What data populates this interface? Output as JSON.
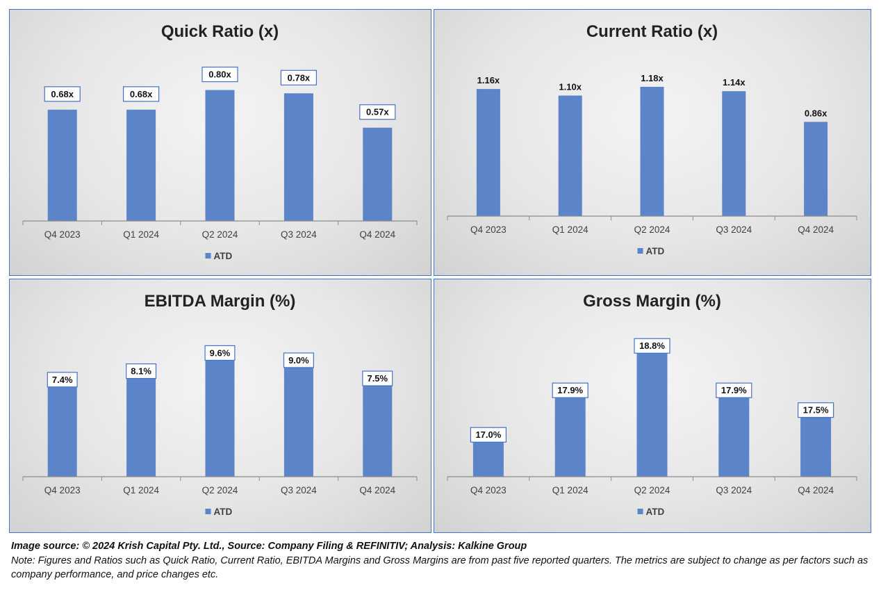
{
  "chart_data": [
    {
      "type": "bar",
      "title": "Quick Ratio  (x)",
      "categories": [
        "Q4 2023",
        "Q1 2024",
        "Q2 2024",
        "Q3 2024",
        "Q4 2024"
      ],
      "series": [
        {
          "name": "ATD",
          "values": [
            0.68,
            0.68,
            0.8,
            0.78,
            0.57
          ]
        }
      ],
      "labels": [
        "0.68x",
        "0.68x",
        "0.80x",
        "0.78x",
        "0.57x"
      ],
      "label_boxed": true,
      "ylim": [
        0,
        0.9
      ],
      "grid": false,
      "legend": "bottom"
    },
    {
      "type": "bar",
      "title": "Current Ratio (x)",
      "categories": [
        "Q4 2023",
        "Q1 2024",
        "Q2 2024",
        "Q3 2024",
        "Q4 2024"
      ],
      "series": [
        {
          "name": "ATD",
          "values": [
            1.16,
            1.1,
            1.18,
            1.14,
            0.86
          ]
        }
      ],
      "labels": [
        "1.16x",
        "1.10x",
        "1.18x",
        "1.14x",
        "0.86x"
      ],
      "label_boxed": false,
      "ylim": [
        0,
        1.3
      ],
      "grid": false,
      "legend": "bottom"
    },
    {
      "type": "bar",
      "title": "EBITDA Margin (%)",
      "categories": [
        "Q4 2023",
        "Q1 2024",
        "Q2 2024",
        "Q3 2024",
        "Q4 2024"
      ],
      "series": [
        {
          "name": "ATD",
          "values": [
            7.4,
            8.1,
            9.6,
            9.0,
            7.5
          ]
        }
      ],
      "labels": [
        "7.4%",
        "8.1%",
        "9.6%",
        "9.0%",
        "7.5%"
      ],
      "label_boxed": true,
      "ylim": [
        0,
        11
      ],
      "grid": false,
      "legend": "bottom"
    },
    {
      "type": "bar",
      "title": "Gross Margin (%)",
      "categories": [
        "Q4 2023",
        "Q1 2024",
        "Q2 2024",
        "Q3 2024",
        "Q4 2024"
      ],
      "series": [
        {
          "name": "ATD",
          "values": [
            17.0,
            17.9,
            18.8,
            17.9,
            17.5
          ]
        }
      ],
      "labels": [
        "17.0%",
        "17.9%",
        "18.8%",
        "17.9%",
        "17.5%"
      ],
      "label_boxed": true,
      "ylim": [
        16.3,
        19.0
      ],
      "grid": false,
      "legend": "bottom"
    }
  ],
  "colors": {
    "bar": "#5b84c9",
    "axis": "#8c8c8c",
    "text": "#222222",
    "tick": "#404040",
    "border": "#4472c4"
  },
  "footer": {
    "source": "Image source: © 2024 Krish Capital Pty. Ltd., Source: Company Filing & REFINITIV; Analysis: Kalkine Group",
    "note": "Note: Figures and Ratios such as Quick Ratio, Current Ratio, EBITDA Margins and Gross Margins are from past five reported quarters. The metrics are subject to change as per factors such as company performance, and price changes etc."
  }
}
